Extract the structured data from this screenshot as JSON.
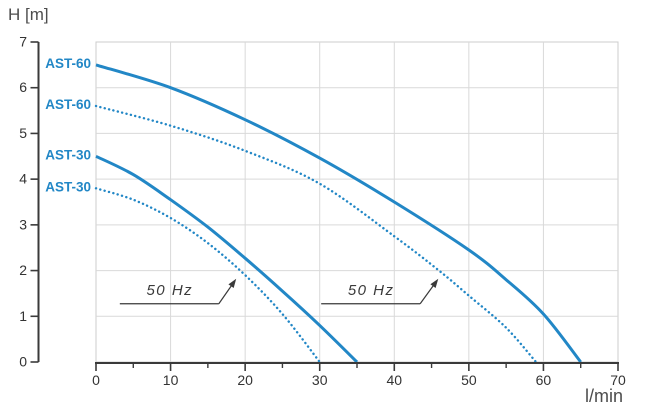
{
  "chart_data": {
    "type": "line",
    "title": "",
    "ylabel": "H [m]",
    "xlabel": "l/min",
    "xlim": [
      0,
      70
    ],
    "ylim": [
      0,
      7
    ],
    "x_major_ticks": [
      0,
      10,
      20,
      30,
      40,
      50,
      60,
      70
    ],
    "x_minor_ticks": [
      5,
      15,
      25,
      35,
      45,
      55,
      65
    ],
    "y_ticks": [
      0,
      1,
      2,
      3,
      4,
      5,
      6,
      7
    ],
    "grid": true,
    "legend_position": "curve-start-labels",
    "colors": {
      "curve": "#2287c6",
      "curve_label": "#2287c6",
      "axis": "#3a3a3a",
      "tick_text": "#333333",
      "grid": "#d9d9d9",
      "plot_border": "#cccccc",
      "annotation": "#3a3a3a"
    },
    "series": [
      {
        "name": "AST-60",
        "style": "solid",
        "points": [
          [
            0,
            6.5
          ],
          [
            10,
            6.0
          ],
          [
            20,
            5.3
          ],
          [
            30,
            4.46
          ],
          [
            40,
            3.5
          ],
          [
            50,
            2.45
          ],
          [
            55,
            1.8
          ],
          [
            60,
            1.05
          ],
          [
            65,
            0
          ]
        ]
      },
      {
        "name": "AST-60",
        "style": "dotted",
        "points": [
          [
            0,
            5.6
          ],
          [
            10,
            5.17
          ],
          [
            20,
            4.62
          ],
          [
            30,
            3.9
          ],
          [
            40,
            2.75
          ],
          [
            46,
            2.0
          ],
          [
            50,
            1.45
          ],
          [
            55,
            0.75
          ],
          [
            59,
            0
          ]
        ]
      },
      {
        "name": "AST-30",
        "style": "solid",
        "points": [
          [
            0,
            4.5
          ],
          [
            5,
            4.1
          ],
          [
            10,
            3.55
          ],
          [
            15,
            2.95
          ],
          [
            20,
            2.27
          ],
          [
            25,
            1.55
          ],
          [
            30,
            0.8
          ],
          [
            35,
            0
          ]
        ]
      },
      {
        "name": "AST-30",
        "style": "dotted",
        "points": [
          [
            0,
            3.8
          ],
          [
            5,
            3.55
          ],
          [
            10,
            3.15
          ],
          [
            15,
            2.6
          ],
          [
            20,
            1.9
          ],
          [
            25,
            1.05
          ],
          [
            30,
            0
          ]
        ]
      }
    ],
    "annotations": [
      {
        "label": "50 Hz",
        "label_x": 9.9,
        "label_y": 1.58,
        "target_x": 18.8,
        "target_y": 1.82
      },
      {
        "label": "50 Hz",
        "label_x": 36.9,
        "label_y": 1.58,
        "target_x": 45.9,
        "target_y": 1.82
      }
    ]
  }
}
